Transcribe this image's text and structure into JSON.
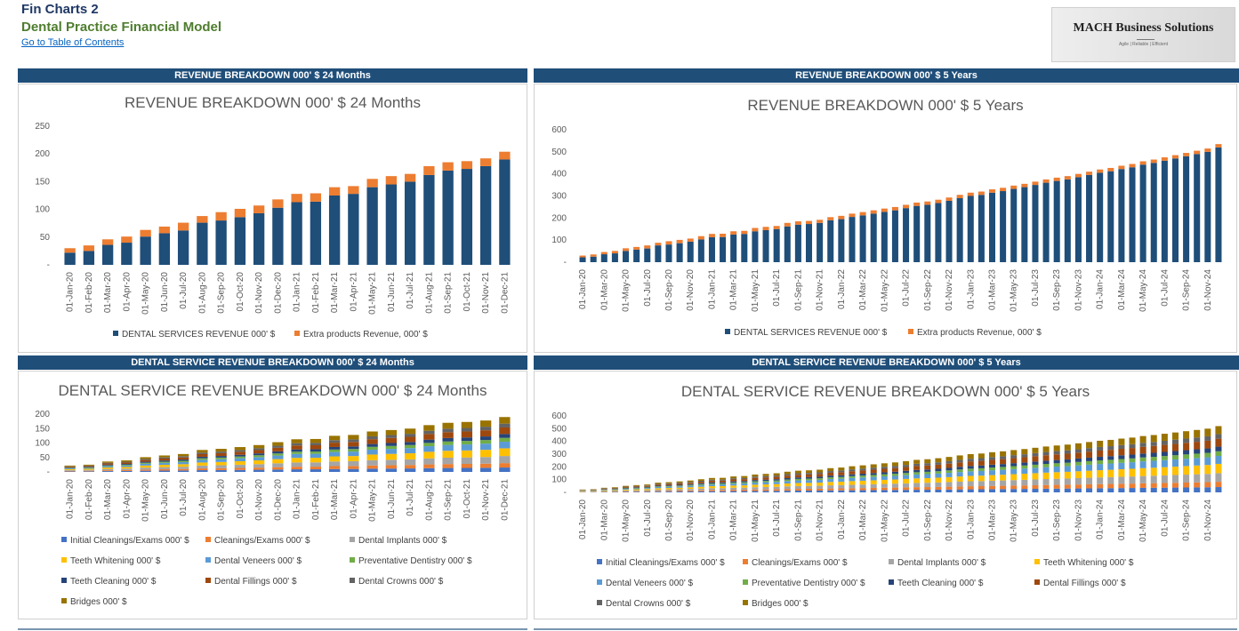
{
  "header": {
    "title": "Fin Charts 2",
    "subtitle": "Dental Practice Financial Model",
    "link": "Go to Table of Contents"
  },
  "logo": {
    "name": "MACH Business Solutions",
    "tagline": "Agile | Reliable | Efficient"
  },
  "panels": {
    "p1": {
      "header": "REVENUE BREAKDOWN 000' $ 24 Months"
    },
    "p2": {
      "header": "REVENUE BREAKDOWN 000' $ 5 Years"
    },
    "p3": {
      "header": "DENTAL SERVICE REVENUE BREAKDOWN 000' $ 24 Months"
    },
    "p4": {
      "header": "DENTAL SERVICE REVENUE BREAKDOWN 000' $ 5 Years"
    }
  },
  "chart_data": [
    {
      "id": "p1",
      "type": "bar",
      "stacked": true,
      "title": "REVENUE BREAKDOWN 000' $ 24 Months",
      "y_ticks": [
        "-",
        "50",
        "100",
        "150",
        "200",
        "250"
      ],
      "ylim": [
        0,
        250
      ],
      "x_start": "2020-01",
      "x_count": 24,
      "x_label_step": 1,
      "legend_columns": 2,
      "series": [
        {
          "name": "DENTAL SERVICES REVENUE 000' $",
          "color": "#1f4e79",
          "values": [
            22,
            25,
            36,
            40,
            51,
            57,
            62,
            76,
            80,
            86,
            93,
            103,
            113,
            114,
            125,
            128,
            140,
            145,
            150,
            162,
            170,
            173,
            178,
            190
          ]
        },
        {
          "name": "Extra products Revenue, 000' $",
          "color": "#ed7d31",
          "values": [
            8,
            10,
            10,
            11,
            12,
            12,
            14,
            12,
            15,
            15,
            14,
            15,
            15,
            15,
            15,
            14,
            15,
            15,
            14,
            16,
            15,
            14,
            14,
            14
          ]
        }
      ]
    },
    {
      "id": "p2",
      "type": "bar",
      "stacked": true,
      "title": "REVENUE BREAKDOWN 000' $ 5 Years",
      "y_ticks": [
        "-",
        "100",
        "200",
        "300",
        "400",
        "500",
        "600"
      ],
      "ylim": [
        0,
        600
      ],
      "x_start": "2020-01",
      "x_count": 60,
      "x_label_step": 2,
      "legend_columns": 2,
      "series": [
        {
          "name": "DENTAL SERVICES REVENUE 000' $",
          "color": "#1f4e79",
          "values": [
            22,
            25,
            36,
            40,
            51,
            57,
            62,
            76,
            80,
            86,
            93,
            103,
            113,
            114,
            125,
            128,
            140,
            145,
            150,
            162,
            170,
            173,
            178,
            190,
            195,
            205,
            212,
            220,
            228,
            235,
            245,
            255,
            260,
            268,
            278,
            290,
            300,
            305,
            315,
            322,
            332,
            340,
            350,
            360,
            368,
            375,
            385,
            395,
            405,
            412,
            422,
            430,
            442,
            450,
            460,
            470,
            480,
            490,
            500,
            520
          ]
        },
        {
          "name": "Extra products Revenue, 000' $",
          "color": "#ed7d31",
          "values": [
            8,
            10,
            10,
            11,
            12,
            12,
            14,
            12,
            15,
            15,
            14,
            15,
            15,
            15,
            15,
            14,
            15,
            15,
            14,
            16,
            15,
            14,
            14,
            14,
            15,
            15,
            15,
            15,
            15,
            15,
            15,
            15,
            15,
            15,
            15,
            15,
            15,
            15,
            15,
            15,
            15,
            15,
            15,
            15,
            15,
            15,
            15,
            15,
            15,
            15,
            15,
            15,
            15,
            15,
            15,
            15,
            15,
            15,
            15,
            15
          ]
        }
      ]
    },
    {
      "id": "p3",
      "type": "bar",
      "stacked": true,
      "title": "DENTAL SERVICE REVENUE BREAKDOWN 000' $ 24 Months",
      "y_ticks": [
        "-",
        "50",
        "100",
        "150",
        "200"
      ],
      "ylim": [
        0,
        200
      ],
      "x_start": "2020-01",
      "x_count": 24,
      "x_label_step": 1,
      "legend_columns": 3,
      "totals": [
        22,
        25,
        36,
        40,
        51,
        57,
        62,
        76,
        80,
        86,
        93,
        103,
        113,
        114,
        125,
        128,
        140,
        145,
        150,
        162,
        170,
        173,
        178,
        190
      ],
      "series": [
        {
          "name": "Initial Cleanings/Exams 000' $",
          "color": "#4472c4",
          "share": 0.08
        },
        {
          "name": "Cleanings/Exams 000' $",
          "color": "#ed7d31",
          "share": 0.08
        },
        {
          "name": "Dental Implants 000' $",
          "color": "#a5a5a5",
          "share": 0.13
        },
        {
          "name": "Teeth Whitening 000' $",
          "color": "#ffc000",
          "share": 0.14
        },
        {
          "name": "Dental Veneers 000' $",
          "color": "#5b9bd5",
          "share": 0.12
        },
        {
          "name": "Preventative Dentistry 000' $",
          "color": "#70ad47",
          "share": 0.07
        },
        {
          "name": "Teeth Cleaning 000' $",
          "color": "#264478",
          "share": 0.07
        },
        {
          "name": "Dental Fillings 000' $",
          "color": "#9e480e",
          "share": 0.12
        },
        {
          "name": "Dental Crowns 000' $",
          "color": "#636363",
          "share": 0.07
        },
        {
          "name": "Bridges 000' $",
          "color": "#997300",
          "share": 0.12
        }
      ]
    },
    {
      "id": "p4",
      "type": "bar",
      "stacked": true,
      "title": "DENTAL SERVICE REVENUE BREAKDOWN 000' $ 5 Years",
      "y_ticks": [
        "-",
        "100",
        "200",
        "300",
        "400",
        "500",
        "600"
      ],
      "ylim": [
        0,
        600
      ],
      "x_start": "2020-01",
      "x_count": 60,
      "x_label_step": 2,
      "legend_columns": 4,
      "totals": [
        22,
        25,
        36,
        40,
        51,
        57,
        62,
        76,
        80,
        86,
        93,
        103,
        113,
        114,
        125,
        128,
        140,
        145,
        150,
        162,
        170,
        173,
        178,
        190,
        195,
        205,
        212,
        220,
        228,
        235,
        245,
        255,
        260,
        268,
        278,
        290,
        300,
        305,
        315,
        322,
        332,
        340,
        350,
        360,
        368,
        375,
        385,
        395,
        405,
        412,
        422,
        430,
        442,
        450,
        460,
        470,
        480,
        490,
        500,
        520
      ],
      "series": [
        {
          "name": "Initial Cleanings/Exams 000' $",
          "color": "#4472c4",
          "share": 0.08
        },
        {
          "name": "Cleanings/Exams 000' $",
          "color": "#ed7d31",
          "share": 0.08
        },
        {
          "name": "Dental Implants 000' $",
          "color": "#a5a5a5",
          "share": 0.13
        },
        {
          "name": "Teeth Whitening 000' $",
          "color": "#ffc000",
          "share": 0.14
        },
        {
          "name": "Dental Veneers 000' $",
          "color": "#5b9bd5",
          "share": 0.12
        },
        {
          "name": "Preventative Dentistry 000' $",
          "color": "#70ad47",
          "share": 0.07
        },
        {
          "name": "Teeth Cleaning 000' $",
          "color": "#264478",
          "share": 0.07
        },
        {
          "name": "Dental Fillings 000' $",
          "color": "#9e480e",
          "share": 0.12
        },
        {
          "name": "Dental Crowns 000' $",
          "color": "#636363",
          "share": 0.07
        },
        {
          "name": "Bridges 000' $",
          "color": "#997300",
          "share": 0.12
        }
      ]
    }
  ]
}
